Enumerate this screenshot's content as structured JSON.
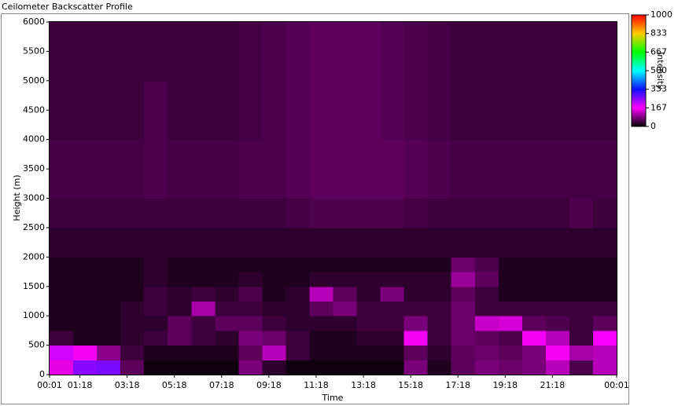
{
  "chart_data": {
    "type": "heatmap",
    "title": "Ceilometer Backscatter Profile",
    "x_label": "Time",
    "y_label": "Height (m)",
    "colorbar_label": "Intensity",
    "xlim": [
      0,
      24
    ],
    "xticks": [
      {
        "value": 0,
        "label": "00:01"
      },
      {
        "value": 1.283,
        "label": "01:18"
      },
      {
        "value": 3.283,
        "label": "03:18"
      },
      {
        "value": 5.283,
        "label": "05:18"
      },
      {
        "value": 7.283,
        "label": "07:18"
      },
      {
        "value": 9.283,
        "label": "09:18"
      },
      {
        "value": 11.283,
        "label": "11:18"
      },
      {
        "value": 13.283,
        "label": "13:18"
      },
      {
        "value": 15.283,
        "label": "15:18"
      },
      {
        "value": 17.283,
        "label": "17:18"
      },
      {
        "value": 19.283,
        "label": "19:18"
      },
      {
        "value": 21.283,
        "label": "21:18"
      },
      {
        "value": 24,
        "label": "00:01"
      }
    ],
    "ylim": [
      0,
      6000
    ],
    "yticks": [
      0,
      500,
      1000,
      1500,
      2000,
      2500,
      3000,
      3500,
      4000,
      4500,
      5000,
      5500,
      6000
    ],
    "zlim": [
      0,
      1000
    ],
    "zticks": [
      0,
      167,
      333,
      500,
      667,
      833,
      1000
    ],
    "colorscale": [
      "#000000",
      "#ff00ff",
      "#1010ff",
      "#00ffff",
      "#00ff00",
      "#ffcc00",
      "#ff0000"
    ],
    "x_bins": [
      0,
      1,
      2,
      3,
      4,
      5,
      6,
      7,
      8,
      9,
      10,
      11,
      12,
      13,
      14,
      15,
      16,
      17,
      18,
      19,
      20,
      21,
      22,
      23,
      24
    ],
    "y_bins": [
      0,
      250,
      500,
      750,
      1000,
      1250,
      1500,
      1750,
      2000,
      2500,
      3000,
      4000,
      5000,
      6000
    ],
    "z": [
      [
        150,
        250,
        260,
        60,
        10,
        10,
        10,
        10,
        80,
        30,
        10,
        10,
        10,
        10,
        10,
        80,
        20,
        60,
        80,
        70,
        80,
        120,
        50,
        120
      ],
      [
        200,
        160,
        90,
        40,
        20,
        20,
        20,
        20,
        60,
        120,
        40,
        20,
        20,
        20,
        20,
        60,
        30,
        60,
        70,
        60,
        80,
        160,
        110,
        120
      ],
      [
        40,
        20,
        20,
        30,
        40,
        60,
        40,
        30,
        80,
        70,
        40,
        20,
        20,
        30,
        30,
        160,
        40,
        70,
        60,
        50,
        160,
        120,
        40,
        170
      ],
      [
        20,
        20,
        20,
        30,
        30,
        60,
        40,
        60,
        60,
        40,
        30,
        30,
        30,
        40,
        40,
        80,
        40,
        70,
        130,
        140,
        60,
        50,
        40,
        60
      ],
      [
        20,
        20,
        20,
        30,
        40,
        30,
        110,
        40,
        40,
        30,
        30,
        60,
        80,
        40,
        40,
        40,
        40,
        70,
        40,
        40,
        40,
        40,
        40,
        40
      ],
      [
        20,
        20,
        20,
        20,
        40,
        30,
        40,
        30,
        50,
        20,
        30,
        120,
        60,
        30,
        80,
        30,
        30,
        60,
        40,
        20,
        20,
        20,
        20,
        20
      ],
      [
        20,
        20,
        20,
        20,
        30,
        20,
        20,
        20,
        30,
        20,
        20,
        30,
        30,
        30,
        30,
        30,
        30,
        100,
        60,
        20,
        20,
        20,
        20,
        20
      ],
      [
        20,
        20,
        20,
        20,
        30,
        20,
        20,
        20,
        20,
        20,
        20,
        20,
        20,
        20,
        20,
        20,
        20,
        70,
        50,
        20,
        20,
        20,
        20,
        20
      ],
      [
        30,
        30,
        30,
        30,
        30,
        30,
        30,
        30,
        30,
        30,
        30,
        30,
        30,
        30,
        30,
        30,
        30,
        30,
        30,
        30,
        30,
        30,
        30,
        30
      ],
      [
        40,
        40,
        40,
        40,
        40,
        40,
        40,
        40,
        40,
        40,
        45,
        50,
        50,
        50,
        50,
        45,
        40,
        40,
        40,
        40,
        40,
        40,
        50,
        40
      ],
      [
        45,
        45,
        45,
        45,
        50,
        45,
        45,
        45,
        50,
        50,
        55,
        60,
        60,
        60,
        60,
        55,
        50,
        45,
        45,
        45,
        45,
        45,
        45,
        45
      ],
      [
        40,
        40,
        40,
        40,
        50,
        40,
        40,
        40,
        45,
        50,
        55,
        60,
        60,
        60,
        55,
        50,
        45,
        40,
        40,
        40,
        40,
        40,
        40,
        40
      ],
      [
        40,
        40,
        40,
        40,
        40,
        40,
        40,
        40,
        45,
        50,
        55,
        60,
        60,
        60,
        55,
        50,
        45,
        40,
        40,
        40,
        40,
        40,
        40,
        40
      ]
    ]
  }
}
